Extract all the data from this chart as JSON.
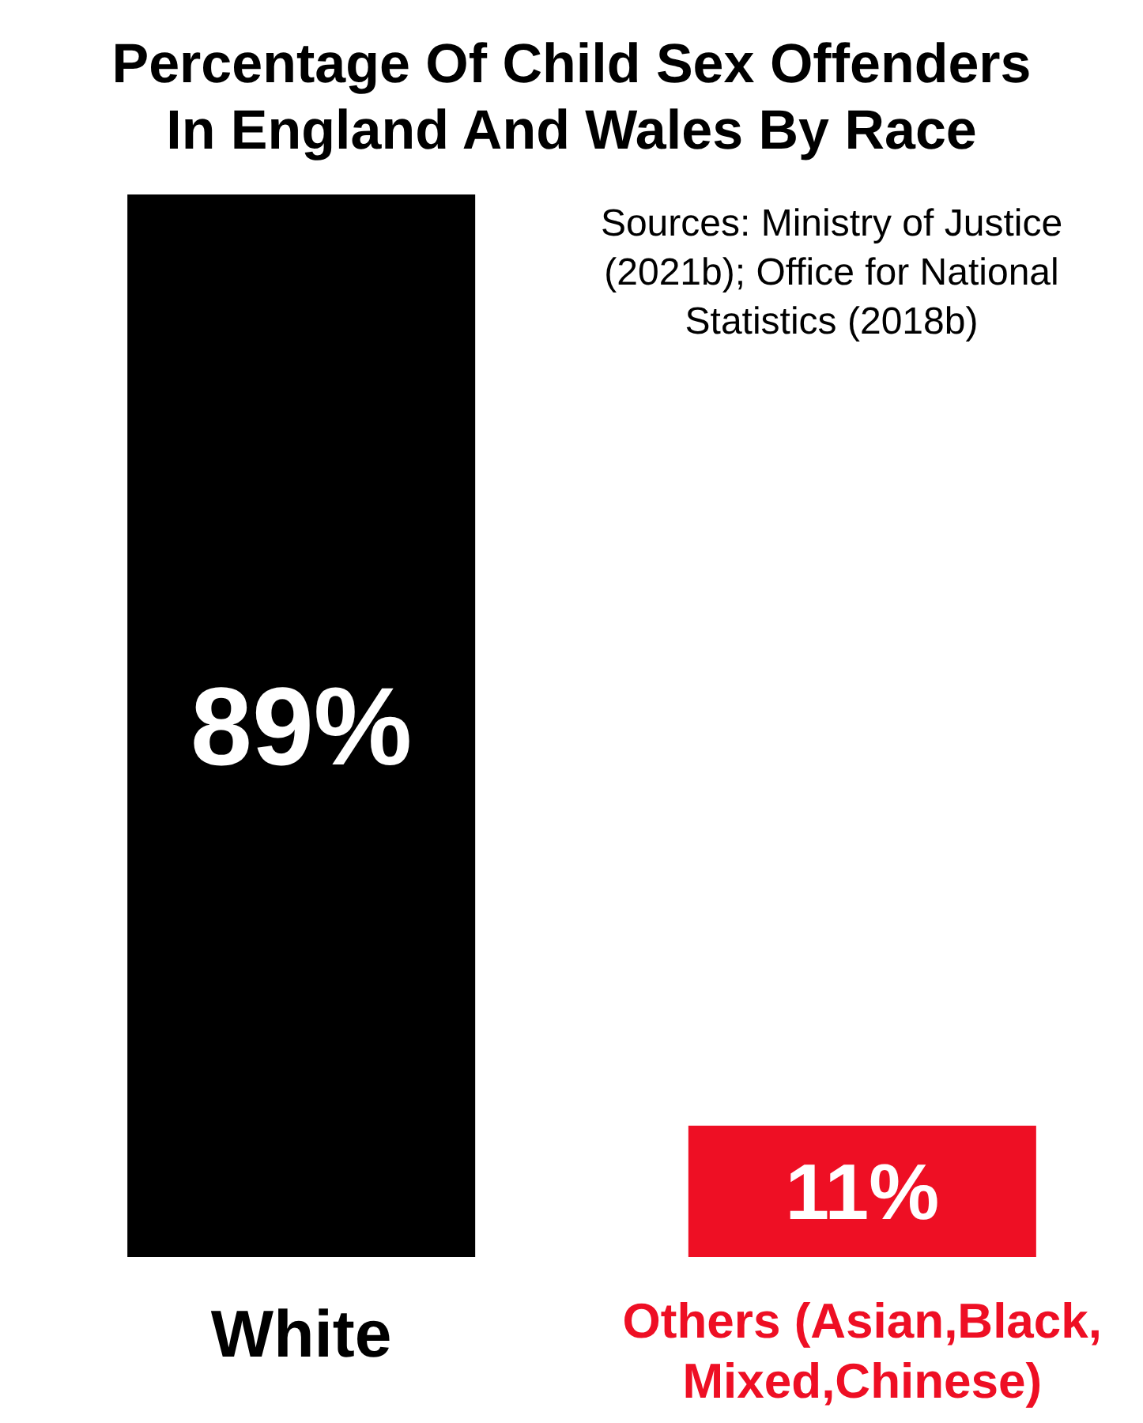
{
  "chart_data": {
    "type": "bar",
    "title": "Percentage Of Child Sex Offenders\nIn England And Wales By Race",
    "categories": [
      "White",
      "Others (Asian,Black, Mixed,Chinese)"
    ],
    "values": [
      89,
      11
    ],
    "colors": [
      "#000000",
      "#ee0f24"
    ],
    "value_labels": [
      "89%",
      "11%"
    ],
    "annotations": [
      "Sources: Ministry of Justice (2021b); Office for National Statistics (2018b)"
    ]
  }
}
